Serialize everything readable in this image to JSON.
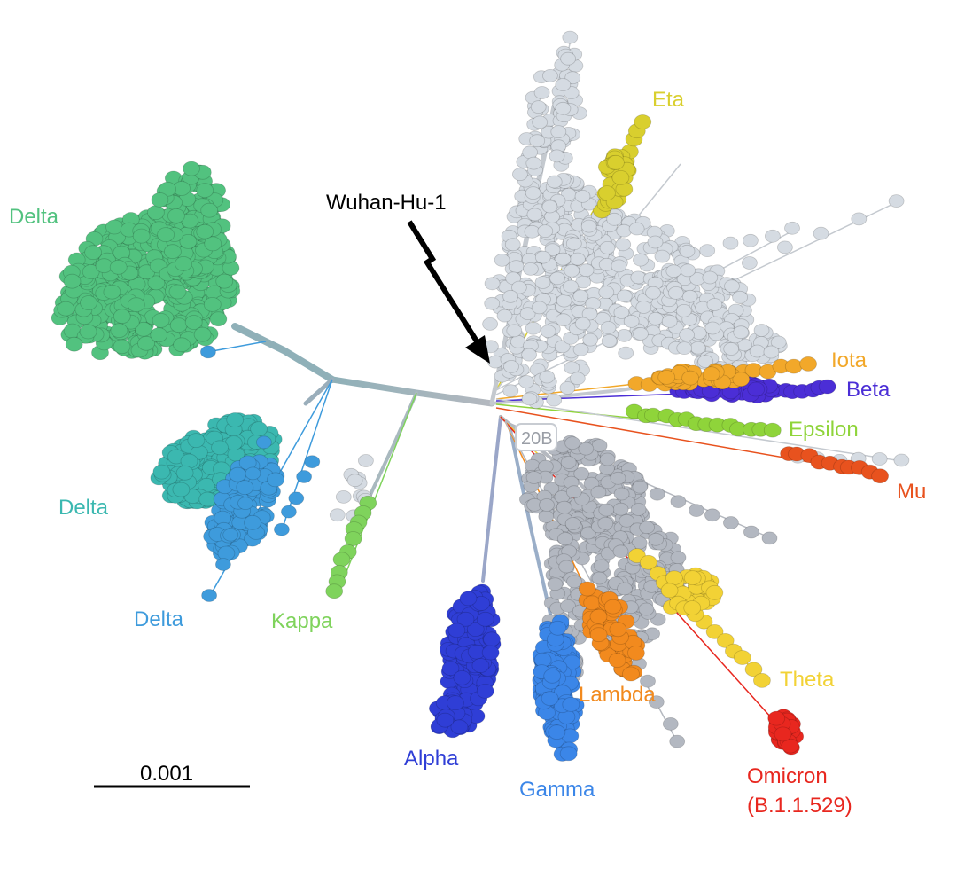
{
  "reference_label": "Wuhan-Hu-1",
  "node_tag": "20B",
  "scale_bar_label": "0.001",
  "colors": {
    "background_tip": "#d5dbe2",
    "background_tip_lower": "#b3b8c1",
    "tip_stroke": "#9ea6b0",
    "branch_trunk": "#9aaebb",
    "branch_gray": "#b4b8bf",
    "arrow": "#000000"
  },
  "clades": [
    {
      "id": "delta-1",
      "label": "Delta",
      "color": "#52c27f"
    },
    {
      "id": "delta-2",
      "label": "Delta",
      "color": "#3bb8b0"
    },
    {
      "id": "delta-3",
      "label": "Delta",
      "color": "#3e9bdc"
    },
    {
      "id": "kappa",
      "label": "Kappa",
      "color": "#7fd35c"
    },
    {
      "id": "alpha",
      "label": "Alpha",
      "color": "#2f3ed6"
    },
    {
      "id": "gamma",
      "label": "Gamma",
      "color": "#3b86e8"
    },
    {
      "id": "lambda",
      "label": "Lambda",
      "color": "#f28a1e"
    },
    {
      "id": "theta",
      "label": "Theta",
      "color": "#f2d235"
    },
    {
      "id": "omicron",
      "label": "Omicron",
      "sublabel": "(B.1.1.529)",
      "color": "#e8271f"
    },
    {
      "id": "mu",
      "label": "Mu",
      "color": "#e8521e"
    },
    {
      "id": "epsilon",
      "label": "Epsilon",
      "color": "#8fd43a"
    },
    {
      "id": "beta",
      "label": "Beta",
      "color": "#4b2ed6"
    },
    {
      "id": "iota",
      "label": "Iota",
      "color": "#f2a82a"
    },
    {
      "id": "eta",
      "label": "Eta",
      "color": "#d9cf2e"
    }
  ]
}
